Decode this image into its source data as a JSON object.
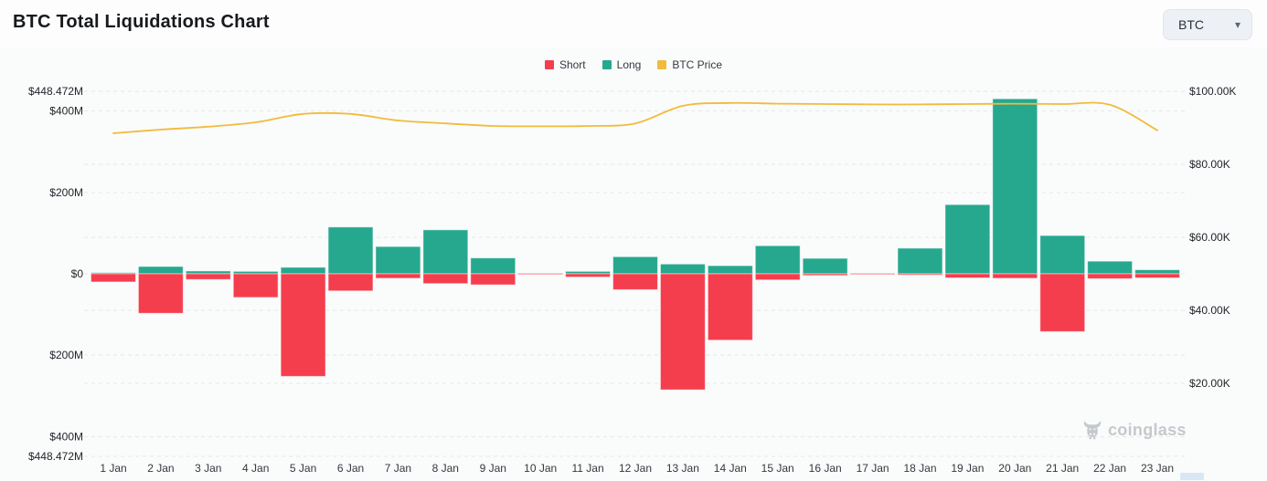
{
  "header": {
    "title": "BTC Total Liquidations Chart",
    "coin_selector": {
      "value": "BTC",
      "caret_icon": "▾"
    }
  },
  "legend": {
    "items": [
      {
        "label": "Short",
        "color": "#f43e4e"
      },
      {
        "label": "Long",
        "color": "#26a88f"
      },
      {
        "label": "BTC Price",
        "color": "#f2bb3b"
      }
    ]
  },
  "watermark": {
    "text": "coinglass",
    "icon": "bull-logo"
  },
  "chart_data": {
    "type": "bar",
    "subtype": "diverging-bars-with-line-overlay",
    "title": "BTC Total Liquidations Chart",
    "categories": [
      "1 Jan",
      "2 Jan",
      "3 Jan",
      "4 Jan",
      "5 Jan",
      "6 Jan",
      "7 Jan",
      "8 Jan",
      "9 Jan",
      "10 Jan",
      "11 Jan",
      "12 Jan",
      "13 Jan",
      "14 Jan",
      "15 Jan",
      "16 Jan",
      "17 Jan",
      "18 Jan",
      "19 Jan",
      "20 Jan",
      "21 Jan",
      "22 Jan",
      "23 Jan"
    ],
    "series": [
      {
        "name": "Short",
        "type": "bar",
        "direction": "down",
        "axis": "left",
        "unit": "USD millions",
        "color": "#f43e4e",
        "values": [
          20,
          97,
          14,
          58,
          252,
          42,
          11,
          24,
          27,
          1.5,
          8,
          39,
          285,
          163,
          15,
          4,
          1.5,
          3,
          10,
          11,
          142,
          12,
          10
        ]
      },
      {
        "name": "Long",
        "type": "bar",
        "direction": "up",
        "axis": "left",
        "unit": "USD millions",
        "color": "#26a88f",
        "values": [
          3,
          18,
          7,
          6,
          16,
          115,
          67,
          108,
          39,
          2,
          6,
          42,
          24,
          20,
          69,
          38,
          2,
          63,
          170,
          430,
          94,
          31,
          10
        ]
      },
      {
        "name": "BTC Price",
        "type": "line",
        "axis": "right",
        "unit": "USD thousands",
        "color": "#f2bb3b",
        "values": [
          88.5,
          89.5,
          90.3,
          91.5,
          93.8,
          93.8,
          92.0,
          91.2,
          90.5,
          90.4,
          90.5,
          91.2,
          96.0,
          96.8,
          96.6,
          96.5,
          96.4,
          96.4,
          96.5,
          96.6,
          96.5,
          96.3,
          89.3
        ]
      }
    ],
    "left_axis": {
      "max": 448.472,
      "ticks": [
        {
          "label": "$448.472M",
          "value": 448.472
        },
        {
          "label": "$400M",
          "value": 400
        },
        {
          "label": "$200M",
          "value": 200
        },
        {
          "label": "$0",
          "value": 0
        },
        {
          "label": "$200M",
          "value": -200
        },
        {
          "label": "$400M",
          "value": -400
        },
        {
          "label": "$448.472M",
          "value": -448.472
        }
      ]
    },
    "right_axis": {
      "max": 100,
      "ticks": [
        {
          "label": "$100.00K",
          "value": 100
        },
        {
          "label": "$80.00K",
          "value": 80
        },
        {
          "label": "$60.00K",
          "value": 60
        },
        {
          "label": "$40.00K",
          "value": 40
        },
        {
          "label": "$20.00K",
          "value": 20
        }
      ]
    },
    "grid": "horizontal dashed",
    "legend_position": "top-center"
  }
}
